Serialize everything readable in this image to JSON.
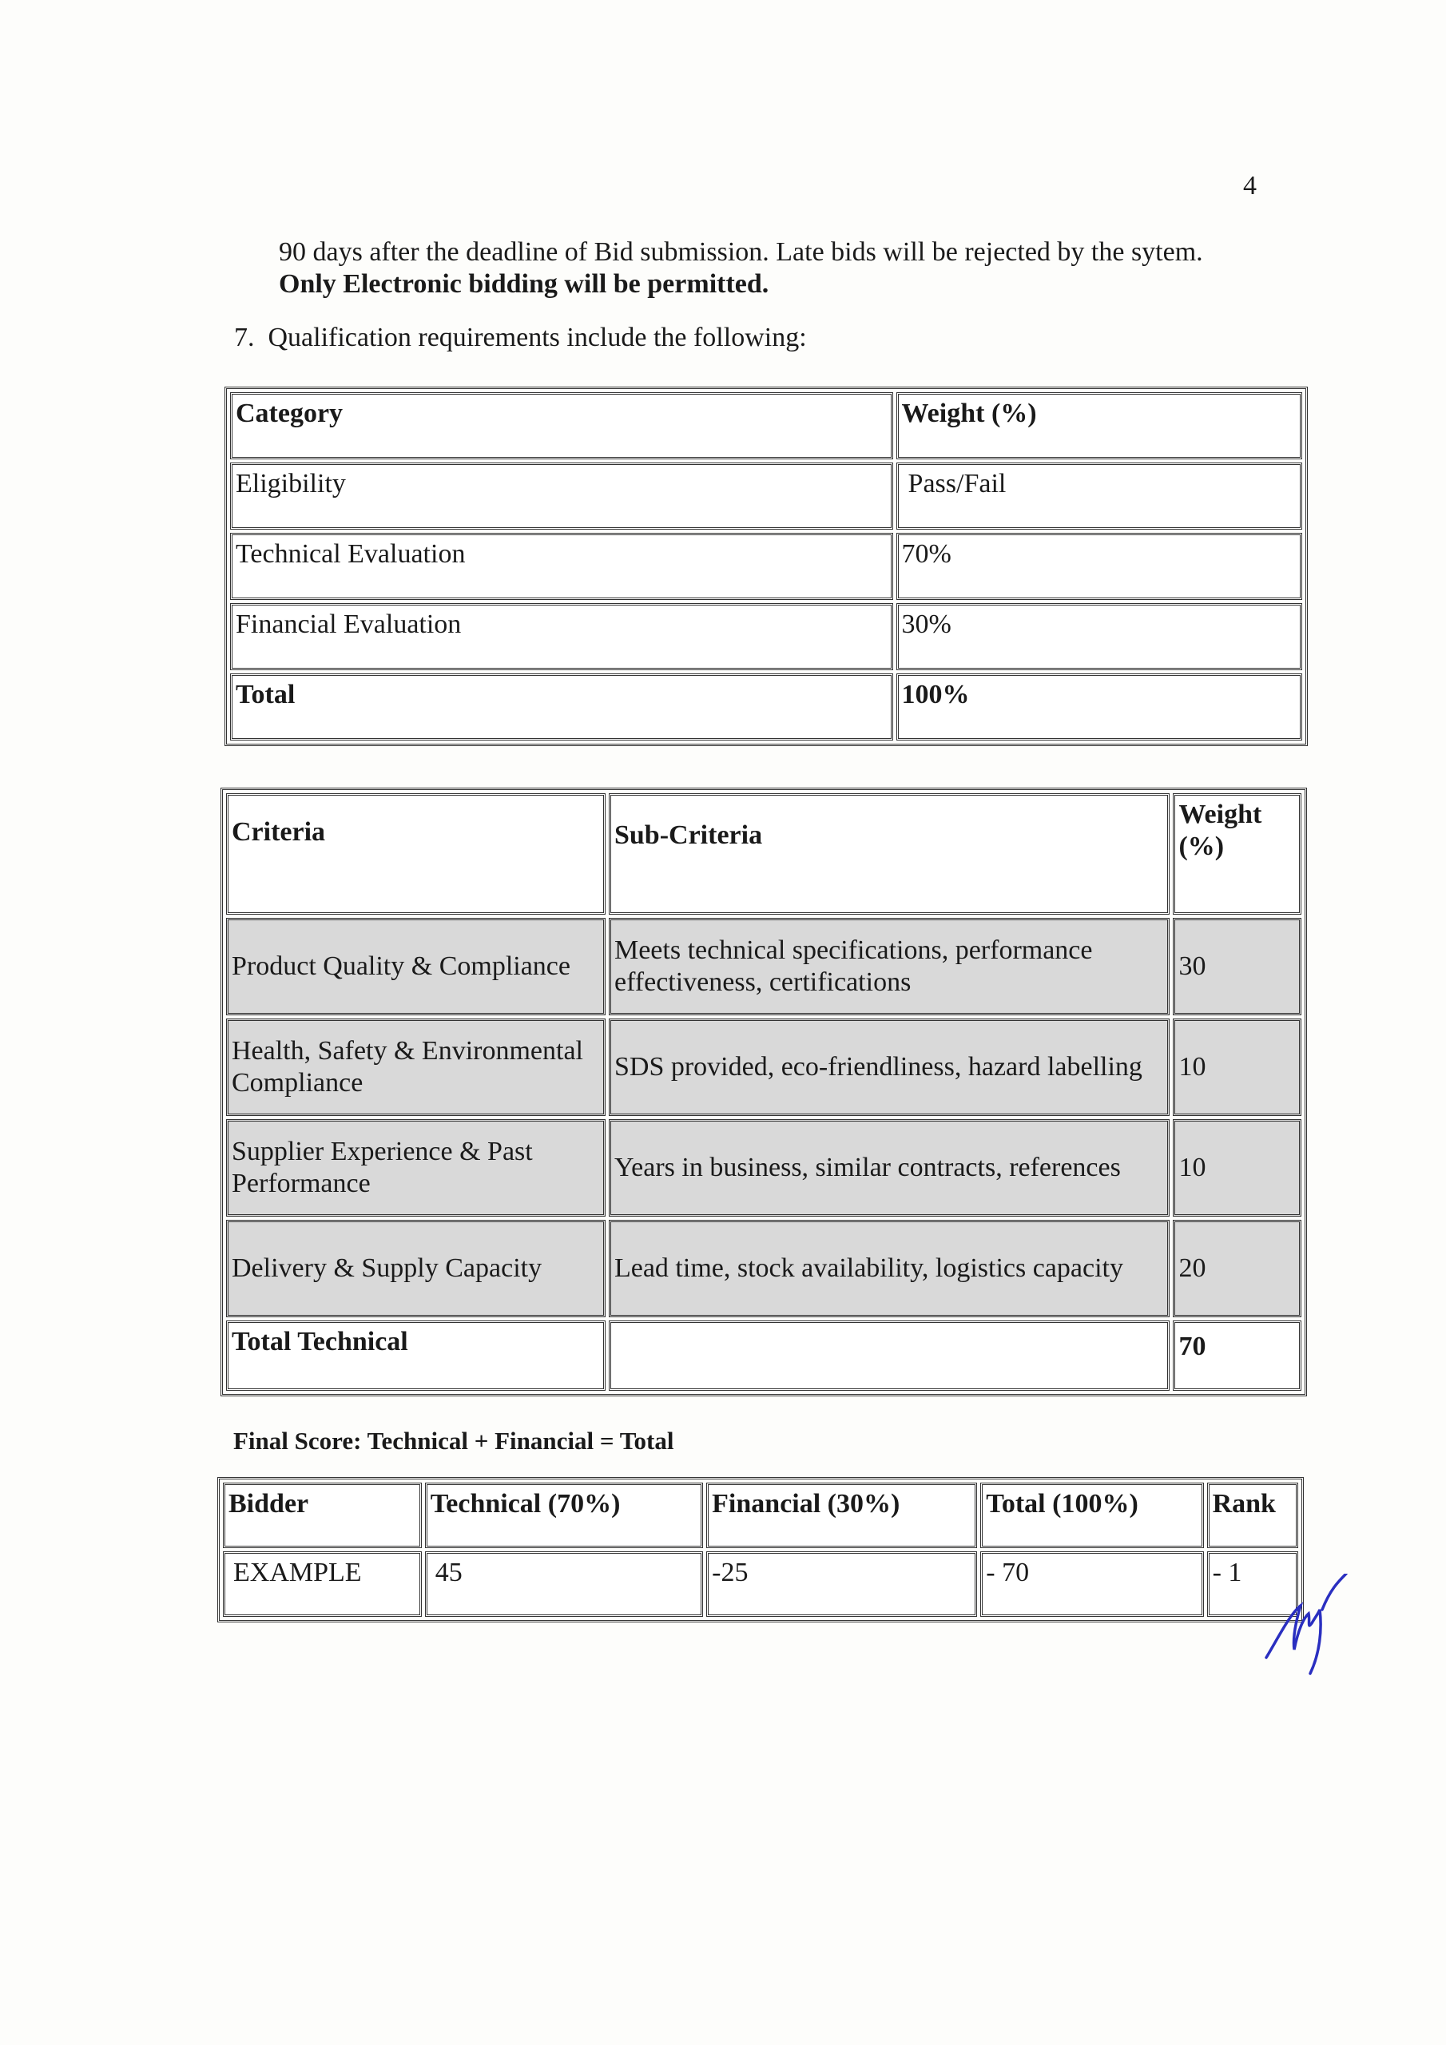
{
  "page_number": "4",
  "intro": {
    "line1": "90 days after the deadline of Bid submission. Late bids will be rejected by the sytem.",
    "line2_bold": "Only Electronic bidding will be permitted."
  },
  "item7": {
    "number": "7.",
    "text": "Qualification requirements include the following:"
  },
  "table1": {
    "headers": [
      "Category",
      "Weight (%)"
    ],
    "rows": [
      [
        "Eligibility",
        "Pass/Fail"
      ],
      [
        "Technical Evaluation",
        "70%"
      ],
      [
        "Financial Evaluation",
        "30%"
      ]
    ],
    "total": [
      "Total",
      "100%"
    ]
  },
  "table2": {
    "headers": [
      "Criteria",
      "Sub-Criteria",
      "Weight (%)"
    ],
    "rows": [
      [
        "Product Quality & Compliance",
        "Meets technical specifications, performance effectiveness, certifications",
        "30"
      ],
      [
        "Health, Safety & Environmental Compliance",
        "SDS provided, eco-friendliness, hazard labelling",
        "10"
      ],
      [
        "Supplier Experience & Past Performance",
        "Years in business, similar contracts, references",
        "10"
      ],
      [
        "Delivery & Supply Capacity",
        "Lead time, stock availability, logistics capacity",
        "20"
      ]
    ],
    "total": [
      "Total Technical",
      "",
      "70"
    ],
    "row_fill": "#d9d9d9"
  },
  "final_score_label": "Final Score: Technical + Financial = Total",
  "table3": {
    "headers": [
      "Bidder",
      "Technical (70%)",
      "Financial (30%)",
      "Total (100%)",
      "Rank"
    ],
    "rows": [
      [
        "EXAMPLE",
        "45",
        "-25",
        "- 70",
        "- 1"
      ]
    ]
  },
  "signature_color": "#2a2fc0"
}
